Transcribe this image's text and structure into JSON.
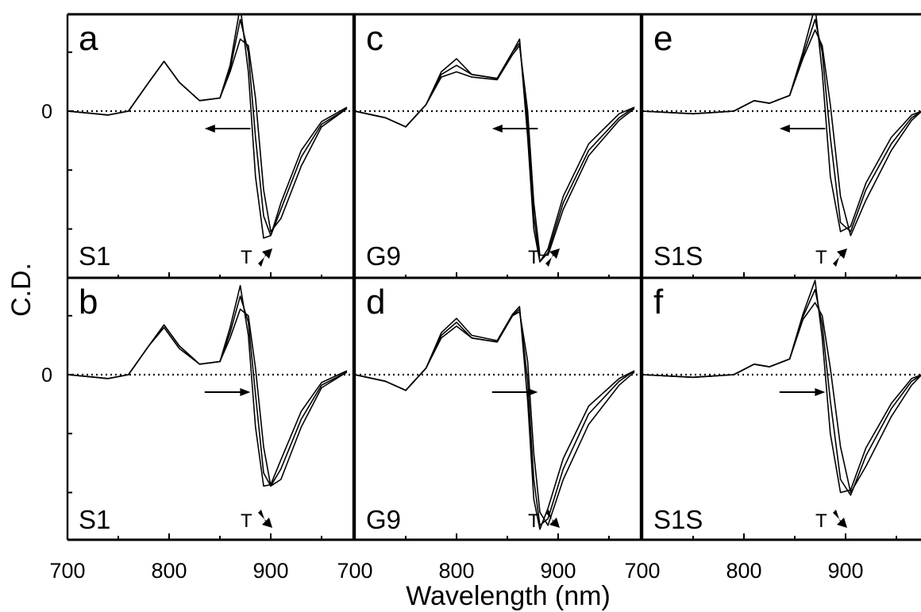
{
  "chart_data": {
    "type": "line",
    "xlabel": "Wavelength (nm)",
    "ylabel": "C.D.",
    "xlim": [
      700,
      975
    ],
    "ylim": [
      -1.25,
      0.9
    ],
    "x_ticks": [
      "700",
      "800",
      "900"
    ],
    "y_zero_label": "0",
    "grid": false,
    "panels": [
      {
        "letter": "a",
        "sample": "S1",
        "t_label": "T",
        "t_direction": "up",
        "shift_direction": "left",
        "series": [
          {
            "x": [
              700,
              740,
              760,
              780,
              795,
              810,
              830,
              850,
              860,
              870,
              878,
              885,
              893,
              900,
              910,
              930,
              950,
              975
            ],
            "y": [
              0,
              -0.03,
              0,
              0.22,
              0.38,
              0.22,
              0.08,
              0.1,
              0.35,
              0.8,
              0.3,
              -0.5,
              -0.97,
              -0.95,
              -0.7,
              -0.3,
              -0.08,
              0.03
            ]
          },
          {
            "x": [
              700,
              740,
              760,
              780,
              795,
              810,
              830,
              850,
              860,
              870,
              878,
              885,
              893,
              900,
              910,
              930,
              950,
              975
            ],
            "y": [
              0,
              -0.03,
              0,
              0.22,
              0.38,
              0.22,
              0.08,
              0.1,
              0.32,
              0.7,
              0.45,
              -0.2,
              -0.8,
              -0.95,
              -0.75,
              -0.35,
              -0.1,
              0.02
            ]
          },
          {
            "x": [
              700,
              740,
              760,
              780,
              795,
              810,
              830,
              850,
              860,
              870,
              878,
              885,
              893,
              900,
              910,
              930,
              950,
              975
            ],
            "y": [
              0,
              -0.03,
              0,
              0.22,
              0.38,
              0.22,
              0.08,
              0.1,
              0.3,
              0.55,
              0.5,
              0.1,
              -0.6,
              -0.92,
              -0.82,
              -0.42,
              -0.12,
              0.02
            ]
          }
        ]
      },
      {
        "letter": "c",
        "sample": "G9",
        "t_label": "T",
        "t_direction": "up",
        "shift_direction": "left",
        "series": [
          {
            "x": [
              700,
              730,
              750,
              770,
              785,
              800,
              815,
              840,
              855,
              862,
              870,
              876,
              882,
              890,
              905,
              930,
              960,
              975
            ],
            "y": [
              0,
              -0.05,
              -0.12,
              0.05,
              0.3,
              0.4,
              0.28,
              0.25,
              0.45,
              0.55,
              -0.2,
              -0.9,
              -1.15,
              -1.05,
              -0.65,
              -0.25,
              -0.02,
              0.03
            ]
          },
          {
            "x": [
              700,
              730,
              750,
              770,
              785,
              800,
              815,
              840,
              855,
              862,
              870,
              876,
              882,
              890,
              905,
              930,
              960,
              975
            ],
            "y": [
              0,
              -0.05,
              -0.12,
              0.05,
              0.28,
              0.35,
              0.28,
              0.25,
              0.45,
              0.52,
              -0.1,
              -0.8,
              -1.15,
              -1.08,
              -0.7,
              -0.3,
              -0.05,
              0.03
            ]
          },
          {
            "x": [
              700,
              730,
              750,
              770,
              785,
              800,
              815,
              840,
              855,
              862,
              870,
              876,
              882,
              890,
              905,
              930,
              960,
              975
            ],
            "y": [
              0,
              -0.05,
              -0.12,
              0.05,
              0.26,
              0.3,
              0.26,
              0.24,
              0.43,
              0.5,
              0.0,
              -0.7,
              -1.1,
              -1.1,
              -0.75,
              -0.34,
              -0.07,
              0.02
            ]
          }
        ]
      },
      {
        "letter": "e",
        "sample": "S1S",
        "t_label": "T",
        "t_direction": "up",
        "shift_direction": "left",
        "series": [
          {
            "x": [
              700,
              750,
              790,
              810,
              825,
              845,
              858,
              870,
              877,
              885,
              895,
              905,
              920,
              945,
              965,
              975
            ],
            "y": [
              0,
              -0.02,
              0,
              0.08,
              0.06,
              0.12,
              0.45,
              0.8,
              0.3,
              -0.5,
              -0.92,
              -0.88,
              -0.55,
              -0.2,
              -0.03,
              0
            ]
          },
          {
            "x": [
              700,
              750,
              790,
              810,
              825,
              845,
              858,
              870,
              877,
              885,
              895,
              905,
              920,
              945,
              965,
              975
            ],
            "y": [
              0,
              -0.02,
              0,
              0.08,
              0.06,
              0.12,
              0.42,
              0.7,
              0.45,
              -0.2,
              -0.85,
              -0.92,
              -0.6,
              -0.25,
              -0.05,
              0
            ]
          },
          {
            "x": [
              700,
              750,
              790,
              810,
              825,
              845,
              858,
              870,
              877,
              885,
              895,
              905,
              920,
              945,
              965,
              975
            ],
            "y": [
              0,
              -0.02,
              0,
              0.08,
              0.06,
              0.12,
              0.4,
              0.62,
              0.5,
              0.05,
              -0.65,
              -0.95,
              -0.68,
              -0.3,
              -0.07,
              0
            ]
          }
        ]
      },
      {
        "letter": "b",
        "sample": "S1",
        "t_label": "T",
        "t_direction": "down",
        "shift_direction": "right",
        "series": [
          {
            "x": [
              700,
              740,
              760,
              780,
              795,
              810,
              830,
              850,
              860,
              870,
              878,
              885,
              893,
              900,
              910,
              930,
              950,
              975
            ],
            "y": [
              0,
              -0.03,
              0,
              0.22,
              0.36,
              0.2,
              0.08,
              0.1,
              0.28,
              0.5,
              0.45,
              0.05,
              -0.55,
              -0.85,
              -0.8,
              -0.4,
              -0.1,
              0.02
            ]
          },
          {
            "x": [
              700,
              740,
              760,
              780,
              795,
              810,
              830,
              850,
              860,
              870,
              878,
              885,
              893,
              900,
              910,
              930,
              950,
              975
            ],
            "y": [
              0,
              -0.03,
              0,
              0.22,
              0.38,
              0.22,
              0.08,
              0.1,
              0.32,
              0.6,
              0.4,
              -0.15,
              -0.75,
              -0.85,
              -0.72,
              -0.34,
              -0.08,
              0.02
            ]
          },
          {
            "x": [
              700,
              740,
              760,
              780,
              795,
              810,
              830,
              850,
              860,
              870,
              878,
              885,
              893,
              900,
              910,
              930,
              950,
              975
            ],
            "y": [
              0,
              -0.03,
              0,
              0.22,
              0.38,
              0.22,
              0.08,
              0.1,
              0.36,
              0.68,
              0.3,
              -0.4,
              -0.85,
              -0.84,
              -0.65,
              -0.28,
              -0.06,
              0.03
            ]
          }
        ]
      },
      {
        "letter": "d",
        "sample": "G9",
        "t_label": "T",
        "t_direction": "down",
        "shift_direction": "right",
        "series": [
          {
            "x": [
              700,
              730,
              750,
              770,
              785,
              800,
              815,
              840,
              855,
              862,
              870,
              876,
              882,
              890,
              905,
              930,
              960,
              975
            ],
            "y": [
              0,
              -0.05,
              -0.12,
              0.05,
              0.28,
              0.37,
              0.28,
              0.25,
              0.45,
              0.48,
              0.1,
              -0.6,
              -1.05,
              -1.15,
              -0.8,
              -0.38,
              -0.08,
              0.02
            ]
          },
          {
            "x": [
              700,
              730,
              750,
              770,
              785,
              800,
              815,
              840,
              855,
              862,
              870,
              876,
              882,
              890,
              905,
              930,
              960,
              975
            ],
            "y": [
              0,
              -0.05,
              -0.12,
              0.05,
              0.3,
              0.4,
              0.28,
              0.25,
              0.45,
              0.5,
              -0.05,
              -0.8,
              -1.15,
              -1.1,
              -0.72,
              -0.3,
              -0.05,
              0.03
            ]
          },
          {
            "x": [
              700,
              730,
              750,
              770,
              785,
              800,
              815,
              840,
              855,
              862,
              870,
              876,
              882,
              890,
              905,
              930,
              960,
              975
            ],
            "y": [
              0,
              -0.05,
              -0.12,
              0.05,
              0.32,
              0.43,
              0.3,
              0.26,
              0.46,
              0.52,
              -0.2,
              -0.95,
              -1.18,
              -1.02,
              -0.64,
              -0.24,
              -0.03,
              0.03
            ]
          }
        ]
      },
      {
        "letter": "f",
        "sample": "S1S",
        "t_label": "T",
        "t_direction": "down",
        "shift_direction": "right",
        "series": [
          {
            "x": [
              700,
              750,
              790,
              810,
              825,
              845,
              858,
              870,
              877,
              885,
              895,
              905,
              920,
              945,
              965,
              975
            ],
            "y": [
              0,
              -0.02,
              0,
              0.08,
              0.06,
              0.12,
              0.42,
              0.55,
              0.45,
              0.05,
              -0.55,
              -0.9,
              -0.7,
              -0.32,
              -0.08,
              0
            ]
          },
          {
            "x": [
              700,
              750,
              790,
              810,
              825,
              845,
              858,
              870,
              877,
              885,
              895,
              905,
              920,
              945,
              965,
              975
            ],
            "y": [
              0,
              -0.02,
              0,
              0.08,
              0.06,
              0.12,
              0.44,
              0.65,
              0.38,
              -0.2,
              -0.8,
              -0.92,
              -0.62,
              -0.26,
              -0.05,
              0
            ]
          },
          {
            "x": [
              700,
              750,
              790,
              810,
              825,
              845,
              858,
              870,
              877,
              885,
              895,
              905,
              920,
              945,
              965,
              975
            ],
            "y": [
              0,
              -0.02,
              0,
              0.08,
              0.06,
              0.12,
              0.46,
              0.72,
              0.28,
              -0.45,
              -0.9,
              -0.88,
              -0.56,
              -0.22,
              -0.03,
              0
            ]
          }
        ]
      }
    ]
  }
}
